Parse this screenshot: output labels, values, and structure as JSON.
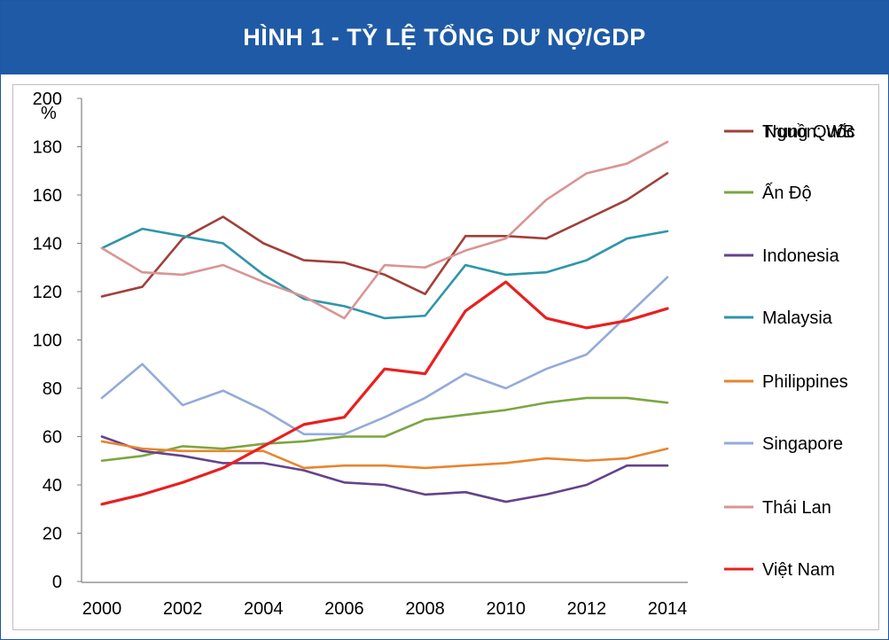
{
  "header": {
    "title": "HÌNH 1 - TỶ LỆ TỔNG DƯ NỢ/GDP"
  },
  "chart_data": {
    "type": "line",
    "title": "HÌNH 1 - TỶ LỆ TỔNG DƯ NỢ/GDP",
    "ylabel": "%",
    "source": "Nguồn: WB",
    "x": [
      2000,
      2001,
      2002,
      2003,
      2004,
      2005,
      2006,
      2007,
      2008,
      2009,
      2010,
      2011,
      2012,
      2013,
      2014
    ],
    "xticks": [
      "2000",
      "2002",
      "2004",
      "2006",
      "2008",
      "2010",
      "2012",
      "2014"
    ],
    "yticks": [
      "0",
      "20",
      "40",
      "60",
      "80",
      "100",
      "120",
      "140",
      "160",
      "180",
      "200"
    ],
    "ylim": [
      0,
      200
    ],
    "xlim": [
      2000,
      2014
    ],
    "legend_position": "right",
    "series": [
      {
        "name": "Trung Quốc",
        "color": "#a0403a",
        "values": [
          118,
          122,
          142,
          151,
          140,
          133,
          132,
          127,
          119,
          143,
          143,
          142,
          150,
          158,
          169
        ]
      },
      {
        "name": "Ấn Độ",
        "color": "#7ca640",
        "values": [
          50,
          52,
          56,
          55,
          57,
          58,
          60,
          60,
          67,
          69,
          71,
          74,
          76,
          76,
          74
        ]
      },
      {
        "name": "Indonesia",
        "color": "#65428a",
        "values": [
          60,
          54,
          52,
          49,
          49,
          46,
          41,
          40,
          36,
          37,
          33,
          36,
          40,
          48,
          48
        ]
      },
      {
        "name": "Malaysia",
        "color": "#2f95aa",
        "values": [
          138,
          146,
          143,
          140,
          127,
          117,
          114,
          109,
          110,
          131,
          127,
          128,
          133,
          142,
          145
        ]
      },
      {
        "name": "Philippines",
        "color": "#e8852e",
        "values": [
          58,
          55,
          54,
          54,
          54,
          47,
          48,
          48,
          47,
          48,
          49,
          51,
          50,
          51,
          55
        ]
      },
      {
        "name": "Singapore",
        "color": "#93abd8",
        "values": [
          76,
          90,
          73,
          79,
          71,
          61,
          61,
          68,
          76,
          86,
          80,
          88,
          94,
          110,
          126
        ]
      },
      {
        "name": "Thái Lan",
        "color": "#d99594",
        "values": [
          138,
          128,
          127,
          131,
          124,
          118,
          109,
          131,
          130,
          137,
          142,
          158,
          169,
          173,
          182
        ]
      },
      {
        "name": "Việt Nam",
        "color": "#e8201f",
        "values": [
          32,
          36,
          41,
          47,
          56,
          65,
          68,
          88,
          86,
          112,
          124,
          109,
          105,
          108,
          113
        ]
      }
    ]
  }
}
